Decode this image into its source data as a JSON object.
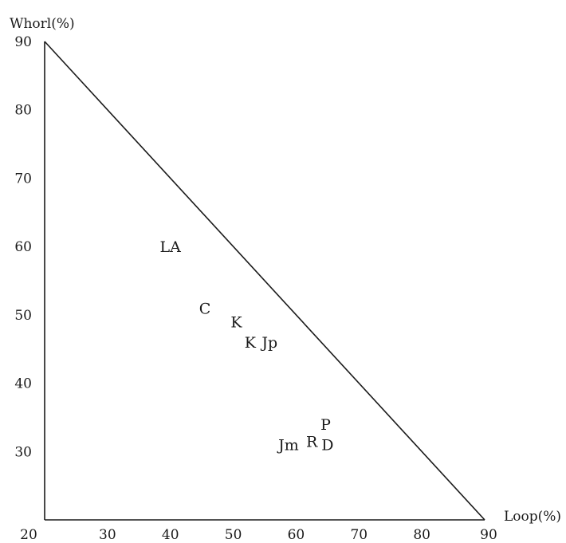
{
  "chart_data": {
    "type": "scatter",
    "title": "",
    "xlabel": "Loop(%)",
    "ylabel": "Whorl(%)",
    "xlim": [
      20,
      90
    ],
    "ylim": [
      20,
      90
    ],
    "x_ticks": [
      "20",
      "30",
      "40",
      "50",
      "60",
      "70",
      "80",
      "90"
    ],
    "y_ticks": [
      "30",
      "40",
      "50",
      "60",
      "70",
      "80",
      "90"
    ],
    "grid": false,
    "boundary_line": {
      "from": [
        20,
        90
      ],
      "to": [
        90,
        20
      ]
    },
    "points": [
      {
        "label": "LA",
        "x": 40.0,
        "y": 60.0
      },
      {
        "label": "C",
        "x": 45.5,
        "y": 51.0
      },
      {
        "label": "K",
        "x": 50.5,
        "y": 49.0
      },
      {
        "label": "K",
        "x": 52.7,
        "y": 46.0
      },
      {
        "label": "Jp",
        "x": 55.8,
        "y": 46.0
      },
      {
        "label": "Jm",
        "x": 58.8,
        "y": 31.0
      },
      {
        "label": "R",
        "x": 62.5,
        "y": 31.5
      },
      {
        "label": "P",
        "x": 64.7,
        "y": 34.0
      },
      {
        "label": "D",
        "x": 65.0,
        "y": 31.0
      }
    ]
  }
}
